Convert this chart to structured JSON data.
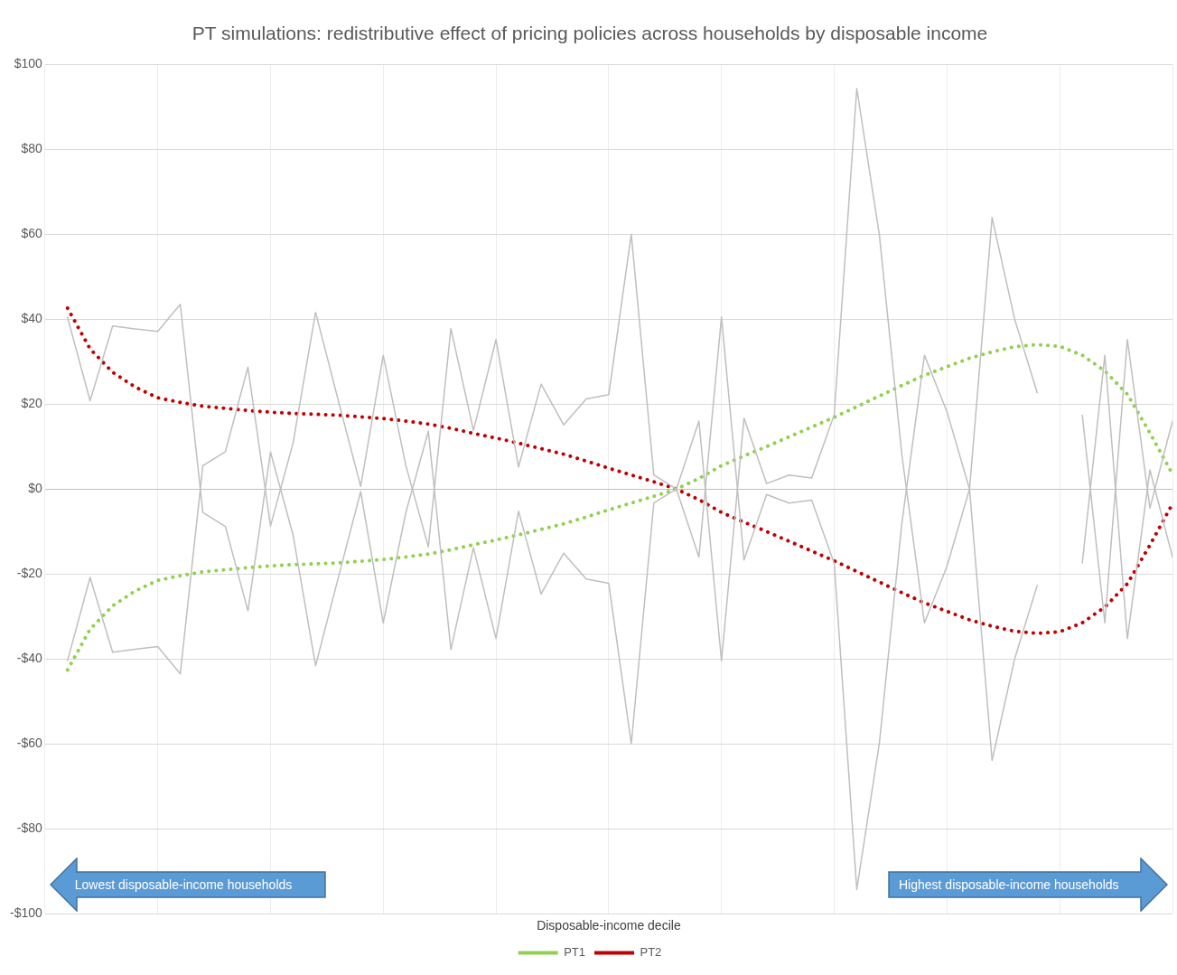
{
  "chart_data": {
    "type": "line",
    "title": "PT simulations: redistributive effect of pricing policies across households by disposable income",
    "xlabel": "Disposable-income decile",
    "categories": [
      null,
      null,
      null,
      null,
      null,
      null,
      null,
      null,
      null,
      null,
      null,
      null,
      null,
      null,
      null,
      null,
      null,
      null,
      null,
      null,
      null,
      null,
      null,
      null,
      null,
      null,
      null,
      null,
      null,
      null,
      null,
      null,
      null,
      null,
      null,
      null,
      null,
      null,
      null,
      null,
      null,
      null,
      null,
      null,
      null,
      null,
      null,
      null,
      null,
      null
    ],
    "series": [
      {
        "color": "#bfbfbf",
        "values": [
          40.4,
          20.8,
          38.4,
          37.7,
          37.1,
          43.5,
          -5.5,
          -8.8,
          -28.7,
          8.7,
          -10.8,
          -41.6,
          -21,
          -0.6,
          -31.5,
          -5.6,
          13.6,
          -37.8,
          -13.8,
          -35.2,
          -5.2,
          -24.7,
          -15.1,
          -21.2,
          -22.2,
          -60,
          -3.3,
          0,
          -16,
          40.5,
          -16.7,
          -1.3,
          -3.3,
          -2.6,
          -17.5,
          -94.3,
          -59.9,
          -8,
          31.5,
          18.2,
          0,
          -63.9,
          -40,
          -22.7,
          null,
          -17.4,
          31.5,
          -35.2,
          4.5,
          -16
        ]
      },
      {
        "color": "#bfbfbf",
        "values": [
          -40.4,
          -20.8,
          -38.4,
          -37.7,
          -37.1,
          -43.5,
          5.5,
          8.8,
          28.7,
          -8.7,
          10.8,
          41.6,
          21,
          0.6,
          31.5,
          5.6,
          -13.6,
          37.8,
          13.8,
          35.2,
          5.2,
          24.7,
          15.1,
          21.2,
          22.2,
          60,
          3.3,
          0,
          16,
          -40.5,
          16.7,
          1.3,
          3.3,
          2.6,
          17.5,
          94.3,
          59.9,
          8,
          -31.5,
          -18.2,
          0,
          63.9,
          40,
          22.7,
          null,
          17.4,
          -31.5,
          35.2,
          -4.5,
          16
        ]
      },
      {
        "name": "PT1",
        "color": "#92d050",
        "line_style": "dotted",
        "values": [
          -42.6,
          -33,
          -27.5,
          -24,
          -21.5,
          -20.4,
          -19.5,
          -19,
          -18.5,
          -18.1,
          -17.8,
          -17.6,
          -17.4,
          -17,
          -16.6,
          -16,
          -15.3,
          -14.3,
          -13.1,
          -12,
          -10.8,
          -9.5,
          -8.2,
          -6.6,
          -4.9,
          -3.3,
          -1.7,
          0,
          2.5,
          5.5,
          7.8,
          10,
          12.3,
          14.6,
          16.9,
          19.4,
          21.9,
          24.4,
          26.8,
          28.8,
          30.8,
          32.3,
          33.5,
          34,
          33.6,
          31.5,
          27.8,
          22.3,
          13.2,
          3.5
        ]
      },
      {
        "name": "PT2",
        "color": "#c00000",
        "line_style": "dotted",
        "values": [
          42.6,
          33,
          27.5,
          24,
          21.5,
          20.4,
          19.5,
          19,
          18.5,
          18.1,
          17.8,
          17.6,
          17.4,
          17,
          16.6,
          16,
          15.3,
          14.3,
          13.1,
          12,
          10.8,
          9.5,
          8.2,
          6.6,
          4.9,
          3.3,
          1.7,
          0,
          -2.5,
          -5.5,
          -7.8,
          -10,
          -12.3,
          -14.6,
          -16.9,
          -19.4,
          -21.9,
          -24.4,
          -26.8,
          -28.8,
          -30.8,
          -32.3,
          -33.5,
          -34,
          -33.6,
          -31.5,
          -27.8,
          -22.3,
          -13.2,
          -3.5
        ]
      }
    ],
    "ylim": [
      -100,
      100
    ],
    "yticks": [
      {
        "value": -100,
        "label": "-$100"
      },
      {
        "value": -80,
        "label": "-$80"
      },
      {
        "value": -60,
        "label": "-$60"
      },
      {
        "value": -40,
        "label": "-$40"
      },
      {
        "value": -20,
        "label": "-$20"
      },
      {
        "value": 0,
        "label": "$0"
      },
      {
        "value": 20,
        "label": "$20"
      },
      {
        "value": 40,
        "label": "$40"
      },
      {
        "value": 60,
        "label": "$60"
      },
      {
        "value": 80,
        "label": "$80"
      },
      {
        "value": 100,
        "label": "$100"
      }
    ],
    "tick_labels": "y",
    "grid": true,
    "legend": "bottom",
    "marker": "none",
    "line_style": "solid",
    "annotations": [
      "Lowest disposable-income households",
      "Highest disposable-income households"
    ]
  }
}
